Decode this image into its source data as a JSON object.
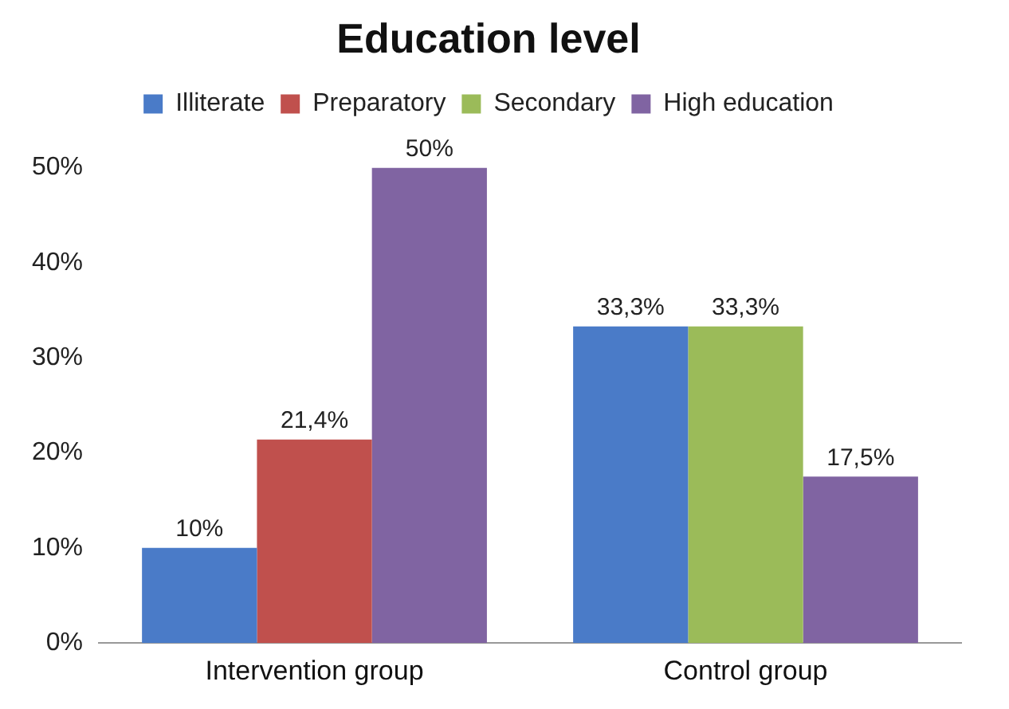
{
  "chart_data": {
    "type": "bar",
    "title": "Education level",
    "categories": [
      "Intervention group",
      "Control group"
    ],
    "series": [
      {
        "name": "Illiterate",
        "color": "#4a7bc8",
        "values": [
          10,
          33.3
        ],
        "value_labels": [
          "10%",
          "33,3%"
        ]
      },
      {
        "name": "Preparatory",
        "color": "#c0504d",
        "values": [
          21.4,
          null
        ],
        "value_labels": [
          "21,4%",
          null
        ]
      },
      {
        "name": "Secondary",
        "color": "#9bbb59",
        "values": [
          null,
          33.3
        ],
        "value_labels": [
          null,
          "33,3%"
        ]
      },
      {
        "name": "High education",
        "color": "#8064a2",
        "values": [
          50,
          17.5
        ],
        "value_labels": [
          "50%",
          "17,5%"
        ]
      }
    ],
    "ylim": [
      0,
      50
    ],
    "yticks": [
      {
        "value": 0,
        "label": "0%"
      },
      {
        "value": 10,
        "label": "10%"
      },
      {
        "value": 20,
        "label": "20%"
      },
      {
        "value": 30,
        "label": "30%"
      },
      {
        "value": 40,
        "label": "40%"
      },
      {
        "value": 50,
        "label": "50%"
      }
    ],
    "grid": false,
    "legend": "top"
  }
}
